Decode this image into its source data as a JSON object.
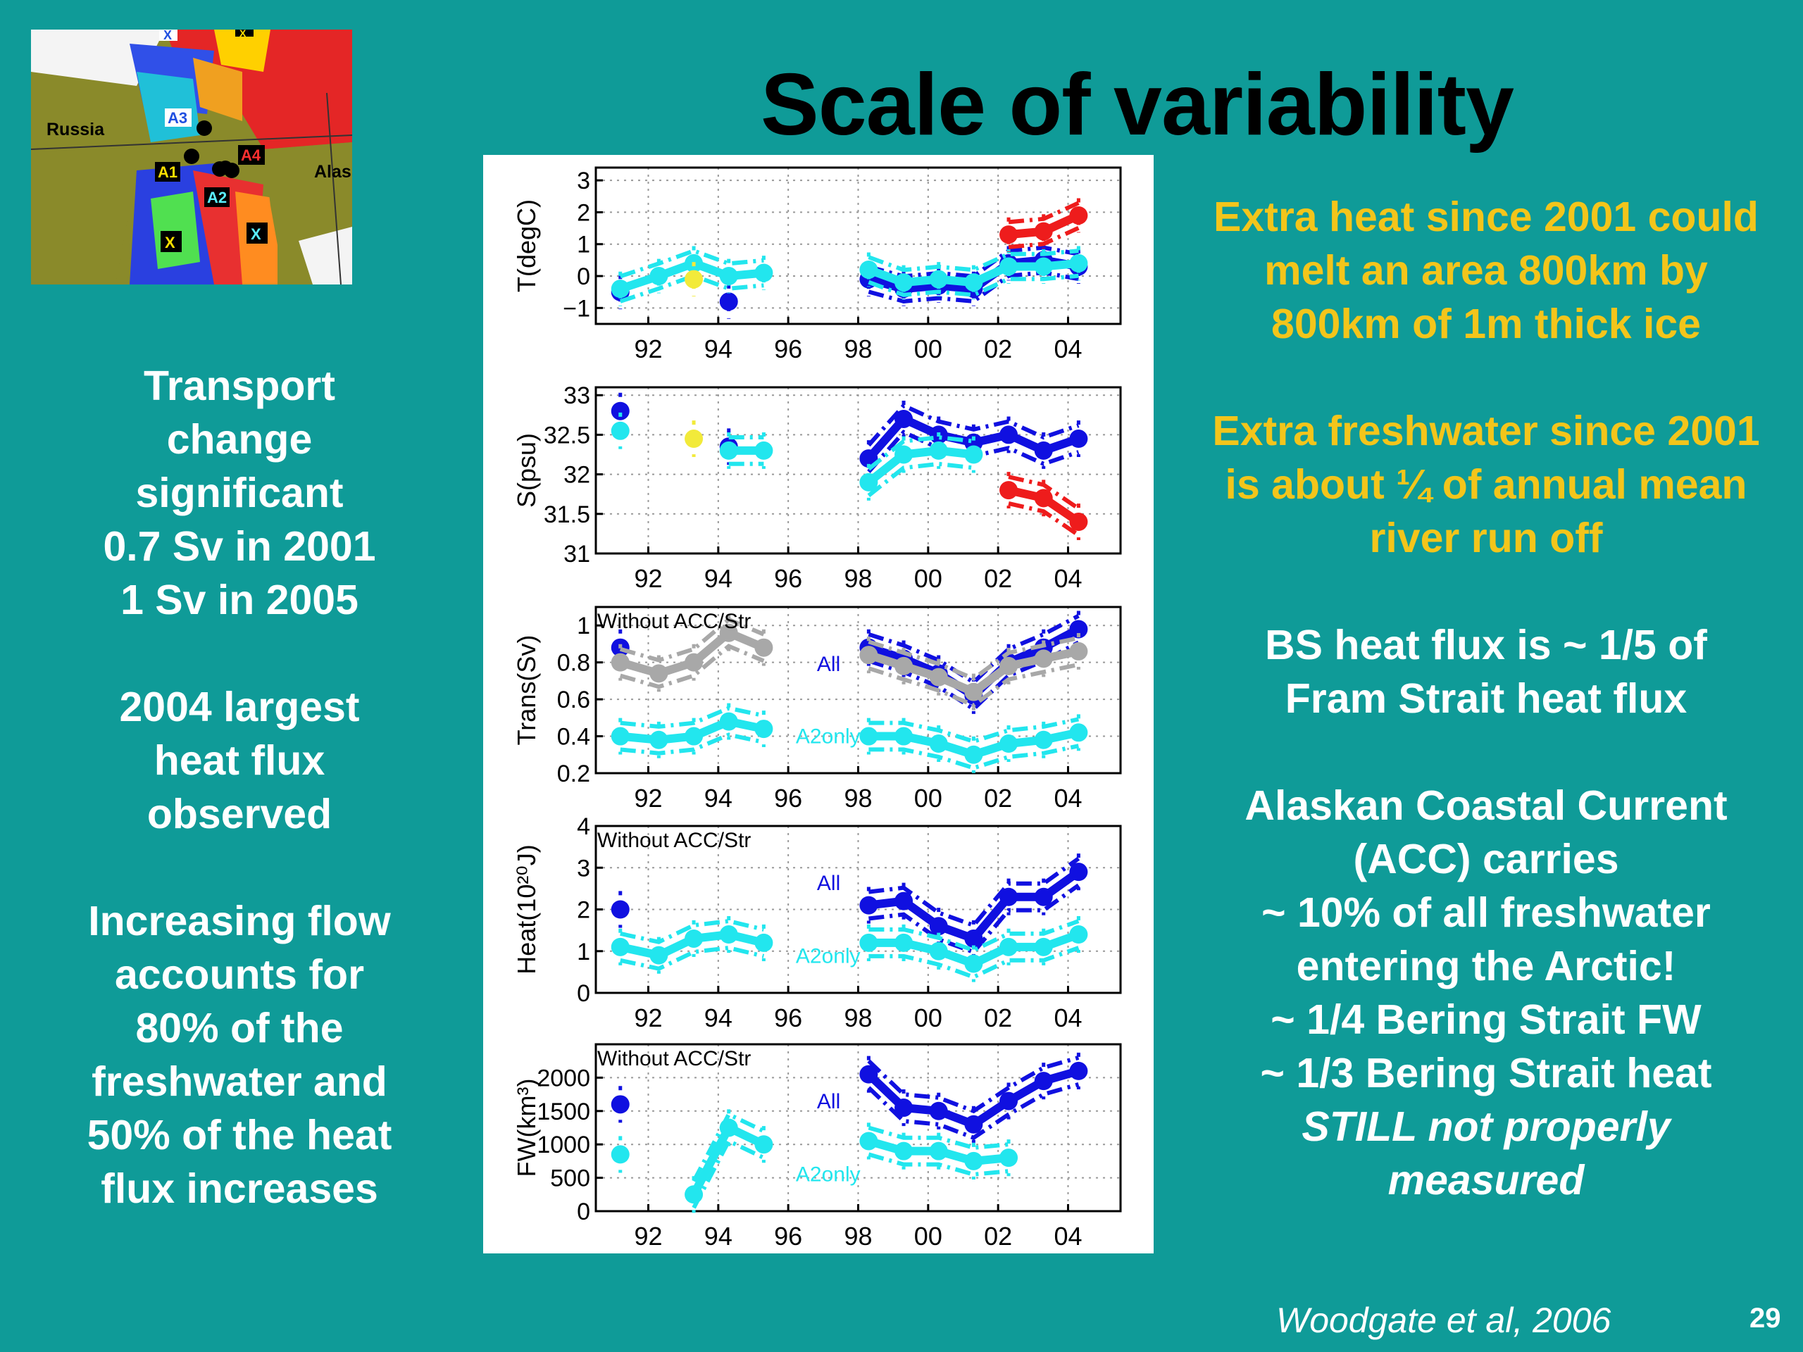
{
  "title": "Scale of variability",
  "map": {
    "labels": [
      "Russia",
      "Alas",
      "A1",
      "A2",
      "A3",
      "A4",
      "X",
      "X",
      "X",
      "X"
    ]
  },
  "left_text": {
    "p1": [
      "Transport",
      "change",
      "significant",
      "0.7 Sv in 2001",
      "1 Sv in 2005"
    ],
    "p2": [
      "2004 largest",
      "heat flux",
      "observed"
    ],
    "p3": [
      "Increasing flow",
      "accounts for",
      "80% of the",
      "freshwater and",
      "50% of the heat",
      "flux increases"
    ]
  },
  "right_text": {
    "p1": [
      "Extra heat since 2001 could",
      "melt an area 800km by",
      "800km of 1m thick ice"
    ],
    "p2": [
      "Extra freshwater since 2001",
      "is about ¼ of annual mean",
      "river run off"
    ],
    "p3": [
      "BS heat flux is ~ 1/5 of",
      "Fram Strait heat flux"
    ],
    "p4": [
      "Alaskan Coastal Current",
      "(ACC) carries",
      "~ 10% of all freshwater",
      "entering the Arctic!",
      "~ 1/4 Bering Strait FW",
      "~ 1/3 Bering Strait heat"
    ],
    "p4_italic": [
      "STILL not properly",
      "measured"
    ]
  },
  "citation": "Woodgate et al, 2006",
  "page_number": "29",
  "colors": {
    "background": "#0f9b98",
    "yellow_text": "#f3c51b",
    "blue": "#1010e0",
    "cyan": "#22e6ee",
    "gray": "#a8a8a8",
    "red": "#ee1c1c",
    "yellow_point": "#f2ea3a"
  },
  "chart_data": [
    {
      "type": "line",
      "ylabel": "T(degC)",
      "xtick_values": [
        1992,
        1994,
        1996,
        1998,
        2000,
        2002,
        2004
      ],
      "xtick_labels": [
        "92",
        "94",
        "96",
        "98",
        "00",
        "02",
        "04"
      ],
      "xlim": [
        1990.5,
        2005.5
      ],
      "ylim": [
        -1.5,
        3.4
      ],
      "yticks": [
        -1,
        0,
        1,
        2,
        3
      ],
      "ytick_labels": [
        "−1",
        "0",
        "1",
        "2",
        "3"
      ],
      "series": [
        {
          "color": "blue",
          "segments": [
            [
              [
                1991.2,
                -0.5
              ]
            ],
            [
              [
                1994.3,
                -0.8
              ]
            ],
            [
              [
                1998.3,
                -0.1
              ],
              [
                1999.3,
                -0.4
              ],
              [
                2000.3,
                -0.3
              ],
              [
                2001.3,
                -0.4
              ],
              [
                2002.3,
                0.4
              ],
              [
                2003.3,
                0.5
              ],
              [
                2004.3,
                0.3
              ]
            ]
          ]
        },
        {
          "color": "cyan",
          "segments": [
            [
              [
                1991.2,
                -0.4
              ],
              [
                1992.3,
                0.0
              ],
              [
                1993.3,
                0.4
              ],
              [
                1994.3,
                0.0
              ],
              [
                1995.3,
                0.1
              ]
            ],
            [
              [
                1998.3,
                0.2
              ],
              [
                1999.3,
                -0.2
              ],
              [
                2000.3,
                -0.1
              ],
              [
                2001.3,
                -0.2
              ],
              [
                2002.3,
                0.3
              ],
              [
                2003.3,
                0.3
              ],
              [
                2004.3,
                0.4
              ]
            ]
          ]
        },
        {
          "color": "yellow",
          "segments": [
            [
              [
                1993.3,
                -0.1
              ]
            ]
          ]
        },
        {
          "color": "red",
          "segments": [
            [
              [
                2002.3,
                1.3
              ],
              [
                2003.3,
                1.4
              ],
              [
                2004.3,
                1.9
              ]
            ]
          ]
        }
      ]
    },
    {
      "type": "line",
      "ylabel": "S(psu)",
      "xtick_values": [
        1992,
        1994,
        1996,
        1998,
        2000,
        2002,
        2004
      ],
      "xtick_labels": [
        "92",
        "94",
        "96",
        "98",
        "00",
        "02",
        "04"
      ],
      "xlim": [
        1990.5,
        2005.5
      ],
      "ylim": [
        31,
        33.1
      ],
      "yticks": [
        31,
        31.5,
        32,
        32.5,
        33
      ],
      "ytick_labels": [
        "31",
        "31.5",
        "32",
        "32.5",
        "33"
      ],
      "series": [
        {
          "color": "blue",
          "segments": [
            [
              [
                1991.2,
                32.8
              ]
            ],
            [
              [
                1994.3,
                32.35
              ]
            ],
            [
              [
                1998.3,
                32.2
              ],
              [
                1999.3,
                32.7
              ],
              [
                2000.3,
                32.5
              ],
              [
                2001.3,
                32.4
              ],
              [
                2002.3,
                32.5
              ],
              [
                2003.3,
                32.3
              ],
              [
                2004.3,
                32.45
              ]
            ]
          ]
        },
        {
          "color": "cyan",
          "segments": [
            [
              [
                1991.2,
                32.55
              ]
            ],
            [
              [
                1994.3,
                32.3
              ],
              [
                1995.3,
                32.3
              ]
            ],
            [
              [
                1998.3,
                31.9
              ],
              [
                1999.3,
                32.25
              ],
              [
                2000.3,
                32.3
              ],
              [
                2001.3,
                32.25
              ]
            ]
          ]
        },
        {
          "color": "yellow",
          "segments": [
            [
              [
                1993.3,
                32.45
              ]
            ]
          ]
        },
        {
          "color": "red",
          "segments": [
            [
              [
                2002.3,
                31.8
              ],
              [
                2003.3,
                31.7
              ],
              [
                2004.3,
                31.4
              ]
            ]
          ]
        }
      ]
    },
    {
      "type": "line",
      "ylabel": "Trans(Sv)",
      "annotations": [
        "Without ACC/Str",
        "All",
        "A2only"
      ],
      "xtick_values": [
        1992,
        1994,
        1996,
        1998,
        2000,
        2002,
        2004
      ],
      "xtick_labels": [
        "92",
        "94",
        "96",
        "98",
        "00",
        "02",
        "04"
      ],
      "xlim": [
        1990.5,
        2005.5
      ],
      "ylim": [
        0.2,
        1.1
      ],
      "yticks": [
        0.2,
        0.4,
        0.6,
        0.8,
        1
      ],
      "ytick_labels": [
        "0.2",
        "0.4",
        "0.6",
        "0.8",
        "1"
      ],
      "series": [
        {
          "color": "blue",
          "segments": [
            [
              [
                1991.2,
                0.88
              ]
            ],
            [
              [
                1998.3,
                0.88
              ],
              [
                1999.3,
                0.82
              ],
              [
                2000.3,
                0.74
              ],
              [
                2001.3,
                0.62
              ],
              [
                2002.3,
                0.8
              ],
              [
                2003.3,
                0.88
              ],
              [
                2004.3,
                0.98
              ]
            ]
          ]
        },
        {
          "color": "gray",
          "segments": [
            [
              [
                1991.2,
                0.8
              ],
              [
                1992.3,
                0.74
              ],
              [
                1993.3,
                0.8
              ],
              [
                1994.3,
                0.96
              ],
              [
                1995.3,
                0.88
              ]
            ],
            [
              [
                1998.3,
                0.84
              ],
              [
                1999.3,
                0.78
              ],
              [
                2000.3,
                0.72
              ],
              [
                2001.3,
                0.64
              ],
              [
                2002.3,
                0.78
              ],
              [
                2003.3,
                0.82
              ],
              [
                2004.3,
                0.86
              ]
            ]
          ]
        },
        {
          "color": "cyan",
          "segments": [
            [
              [
                1991.2,
                0.4
              ],
              [
                1992.3,
                0.38
              ],
              [
                1993.3,
                0.4
              ],
              [
                1994.3,
                0.48
              ],
              [
                1995.3,
                0.44
              ]
            ],
            [
              [
                1998.3,
                0.4
              ],
              [
                1999.3,
                0.4
              ],
              [
                2000.3,
                0.36
              ],
              [
                2001.3,
                0.3
              ],
              [
                2002.3,
                0.36
              ],
              [
                2003.3,
                0.38
              ],
              [
                2004.3,
                0.42
              ]
            ]
          ]
        }
      ]
    },
    {
      "type": "line",
      "ylabel": "Heat(10²⁰J)",
      "annotations": [
        "Without ACC/Str",
        "All",
        "A2only"
      ],
      "xtick_values": [
        1992,
        1994,
        1996,
        1998,
        2000,
        2002,
        2004
      ],
      "xtick_labels": [
        "92",
        "94",
        "96",
        "98",
        "00",
        "02",
        "04"
      ],
      "xlim": [
        1990.5,
        2005.5
      ],
      "ylim": [
        0,
        4
      ],
      "yticks": [
        0,
        1,
        2,
        3,
        4
      ],
      "ytick_labels": [
        "0",
        "1",
        "2",
        "3",
        "4"
      ],
      "series": [
        {
          "color": "blue",
          "segments": [
            [
              [
                1991.2,
                2.0
              ]
            ],
            [
              [
                1998.3,
                2.1
              ],
              [
                1999.3,
                2.2
              ],
              [
                2000.3,
                1.6
              ],
              [
                2001.3,
                1.3
              ],
              [
                2002.3,
                2.3
              ],
              [
                2003.3,
                2.3
              ],
              [
                2004.3,
                2.9
              ]
            ]
          ]
        },
        {
          "color": "cyan",
          "segments": [
            [
              [
                1991.2,
                1.1
              ],
              [
                1992.3,
                0.9
              ],
              [
                1993.3,
                1.3
              ],
              [
                1994.3,
                1.4
              ],
              [
                1995.3,
                1.2
              ]
            ],
            [
              [
                1998.3,
                1.2
              ],
              [
                1999.3,
                1.2
              ],
              [
                2000.3,
                1.0
              ],
              [
                2001.3,
                0.7
              ],
              [
                2002.3,
                1.1
              ],
              [
                2003.3,
                1.1
              ],
              [
                2004.3,
                1.4
              ]
            ]
          ]
        }
      ]
    },
    {
      "type": "line",
      "ylabel": "FW(km³)",
      "annotations": [
        "Without ACC/Str",
        "All",
        "A2only"
      ],
      "xtick_values": [
        1992,
        1994,
        1996,
        1998,
        2000,
        2002,
        2004
      ],
      "xtick_labels": [
        "92",
        "94",
        "96",
        "98",
        "00",
        "02",
        "04"
      ],
      "xlim": [
        1990.5,
        2005.5
      ],
      "ylim": [
        0,
        2500
      ],
      "yticks": [
        0,
        500,
        1000,
        1500,
        2000
      ],
      "ytick_labels": [
        "0",
        "500",
        "1000",
        "1500",
        "2000"
      ],
      "series": [
        {
          "color": "blue",
          "segments": [
            [
              [
                1991.2,
                1600
              ]
            ],
            [
              [
                1998.3,
                2050
              ],
              [
                1999.3,
                1550
              ],
              [
                2000.3,
                1500
              ],
              [
                2001.3,
                1300
              ],
              [
                2002.3,
                1650
              ],
              [
                2003.3,
                1950
              ],
              [
                2004.3,
                2100
              ]
            ]
          ]
        },
        {
          "color": "cyan",
          "segments": [
            [
              [
                1991.2,
                850
              ]
            ],
            [
              [
                1993.3,
                250
              ],
              [
                1994.3,
                1250
              ],
              [
                1995.3,
                1000
              ]
            ],
            [
              [
                1998.3,
                1050
              ],
              [
                1999.3,
                900
              ],
              [
                2000.3,
                900
              ],
              [
                2001.3,
                750
              ],
              [
                2002.3,
                800
              ]
            ]
          ]
        }
      ]
    }
  ]
}
